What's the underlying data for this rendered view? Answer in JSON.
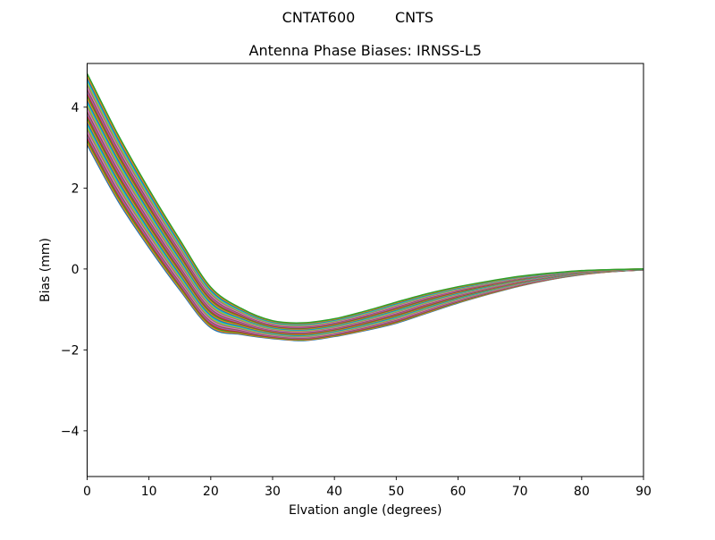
{
  "figure": {
    "background_color": "#ffffff",
    "text_color": "#000000",
    "suptitle_left": "CNTAT600",
    "suptitle_right": "CNTS"
  },
  "chart_data": {
    "type": "line",
    "title": "Antenna Phase Biases: IRNSS-L5",
    "xlabel": "Elvation angle (degrees)",
    "ylabel": "Bias (mm)",
    "grid": false,
    "legend": "none",
    "xlim": [
      0,
      90
    ],
    "ylim": [
      -5.13,
      5.08
    ],
    "xticks": [
      0,
      10,
      20,
      30,
      40,
      50,
      60,
      70,
      80,
      90
    ],
    "xtick_labels": [
      "0",
      "10",
      "20",
      "30",
      "40",
      "50",
      "60",
      "70",
      "80",
      "90"
    ],
    "yticks": [
      -4,
      -2,
      0,
      2,
      4
    ],
    "ytick_labels": [
      "−4",
      "−2",
      "0",
      "2",
      "4"
    ],
    "x": [
      0,
      5,
      10,
      15,
      20,
      25,
      30,
      35,
      40,
      45,
      50,
      55,
      60,
      65,
      70,
      75,
      80,
      85,
      90
    ],
    "center_bias_mm": [
      3.95,
      2.5,
      1.25,
      0.1,
      -0.95,
      -1.3,
      -1.5,
      -1.55,
      -1.45,
      -1.28,
      -1.08,
      -0.85,
      -0.64,
      -0.46,
      -0.3,
      -0.18,
      -0.09,
      -0.04,
      -0.01
    ],
    "envelope_half_width_mm": [
      0.88,
      0.82,
      0.72,
      0.62,
      0.5,
      0.32,
      0.22,
      0.22,
      0.22,
      0.24,
      0.26,
      0.24,
      0.2,
      0.16,
      0.12,
      0.08,
      0.05,
      0.025,
      0.012
    ],
    "num_lines": 33,
    "line_width": 1.5,
    "color_cycle": [
      "#1f77b4",
      "#ff7f0e",
      "#2ca02c",
      "#d62728",
      "#9467bd",
      "#8c564b",
      "#e377c2",
      "#7f7f7f",
      "#bcbd22",
      "#17becf"
    ],
    "notes_min_bias_mm": -1.55,
    "notes_min_at_degrees": 35,
    "notes_value_at_90_degrees": 0
  }
}
